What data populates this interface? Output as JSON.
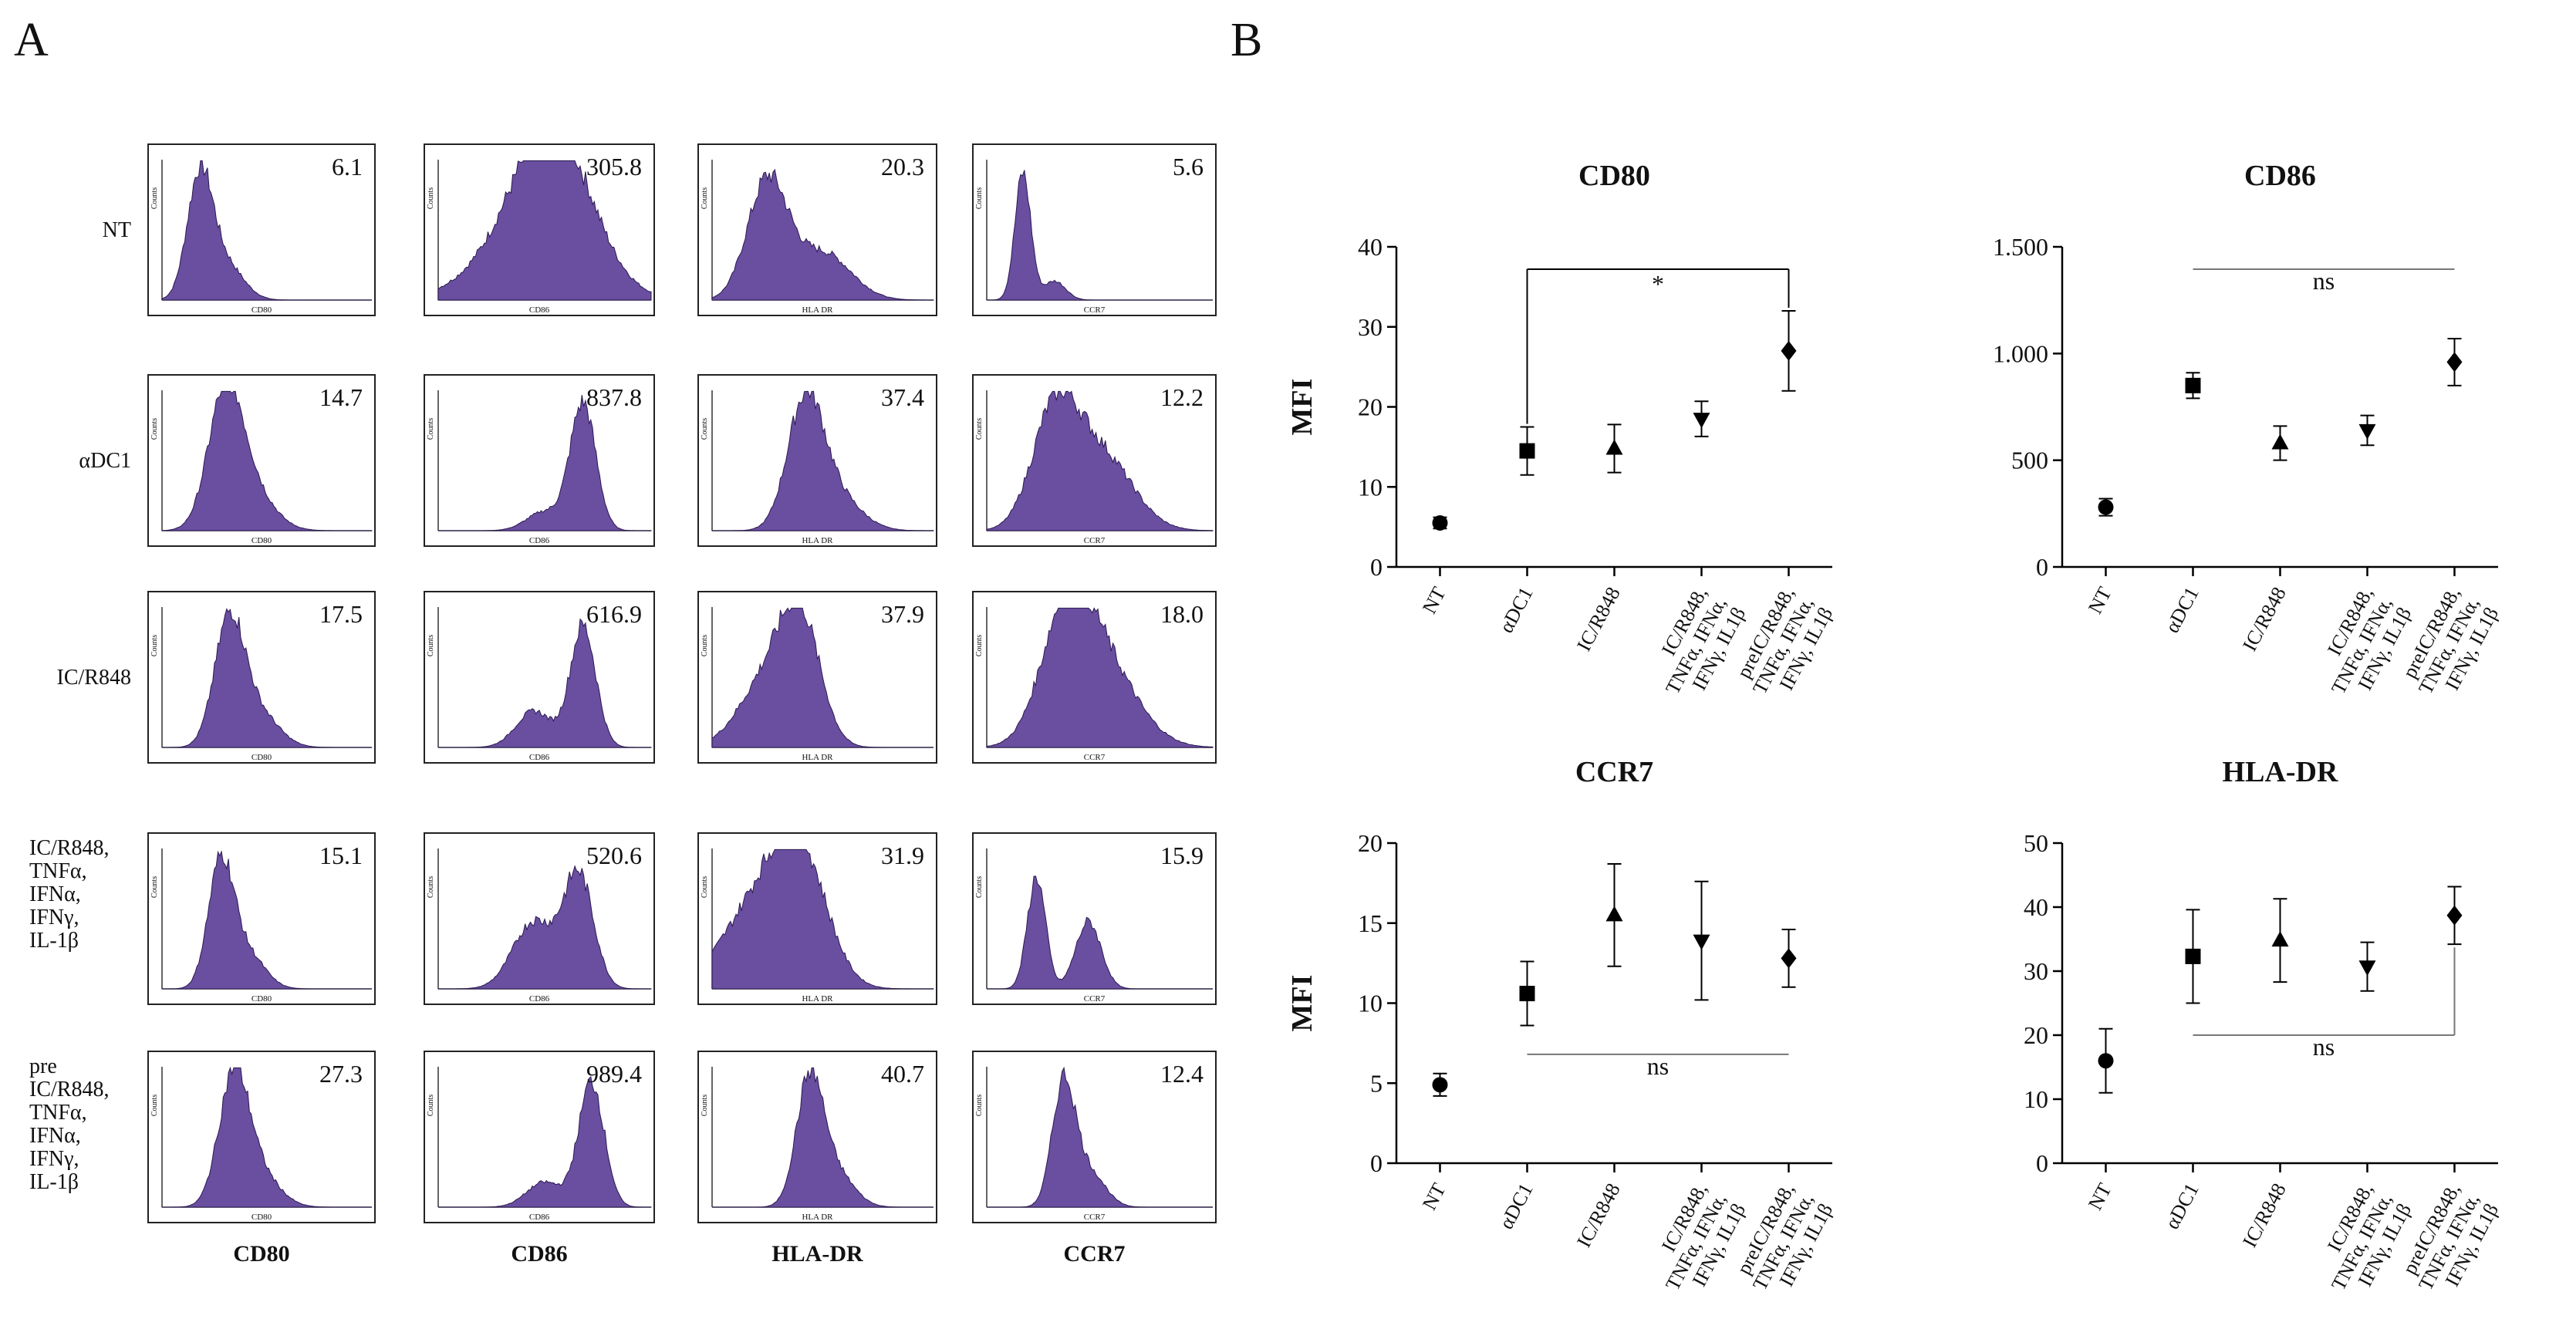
{
  "panel_labels": [
    "A",
    "B"
  ],
  "histograms": {
    "rows": [
      "NT",
      "αDC1",
      "IC/R848",
      "IC/R848,\nTNFα,\nIFNα,\nIFNγ,\nIL-1β",
      "pre\nIC/R848,\nTNFα,\nIFNα,\nIFNγ,\nIL-1β"
    ],
    "columns": [
      "CD80",
      "CD86",
      "HLA-DR",
      "CCR7"
    ],
    "axis_labels": [
      "CD80",
      "CD86",
      "HLA DR",
      "CCR7"
    ],
    "count_label": "Counts",
    "values": [
      [
        "6.1",
        "305.8",
        "20.3",
        "5.6"
      ],
      [
        "14.7",
        "837.8",
        "37.4",
        "12.2"
      ],
      [
        "17.5",
        "616.9",
        "37.9",
        "18.0"
      ],
      [
        "15.1",
        "520.6",
        "31.9",
        "15.9"
      ],
      [
        "27.3",
        "989.4",
        "40.7",
        "12.4"
      ]
    ]
  },
  "chart_data": [
    {
      "type": "scatter",
      "title": "CD80",
      "ylabel": "MFI",
      "categories": [
        "NT",
        "αDC1",
        "IC/R848",
        "IC/R848,\nTNFα, IFNα,\nIFNγ, IL1β",
        "preIC/R848,\nTNFα, IFNα,\nIFNγ, IL1β"
      ],
      "values": [
        5.5,
        14.5,
        14.8,
        18.5,
        27
      ],
      "errors": [
        0.7,
        3,
        3,
        2.2,
        5
      ],
      "markers": [
        "circle",
        "square",
        "triangle",
        "triangle-down",
        "diamond"
      ],
      "color": "#000000",
      "ylim": [
        0,
        40
      ],
      "yticks": [
        0,
        10,
        20,
        30,
        40
      ],
      "significance": {
        "label": "*",
        "between": [
          1,
          4
        ]
      }
    },
    {
      "type": "scatter",
      "title": "CD86",
      "categories": [
        "NT",
        "αDC1",
        "IC/R848",
        "IC/R848,\nTNFα, IFNα,\nIFNγ, IL1β",
        "preIC/R848,\nTNFα, IFNα,\nIFNγ, IL1β"
      ],
      "values": [
        280,
        850,
        580,
        640,
        960
      ],
      "errors": [
        40,
        60,
        80,
        70,
        110
      ],
      "markers": [
        "circle",
        "square",
        "triangle",
        "triangle-down",
        "diamond"
      ],
      "color": "#000000",
      "ylim": [
        0,
        1500
      ],
      "yticks": [
        0,
        500,
        {
          "value": 1000,
          "label": "1.000"
        },
        {
          "value": 1500,
          "label": "1.500"
        }
      ],
      "significance": {
        "label": "ns",
        "between": [
          1,
          4
        ]
      }
    },
    {
      "type": "scatter",
      "title": "CCR7",
      "ylabel": "MFI",
      "categories": [
        "NT",
        "αDC1",
        "IC/R848",
        "IC/R848,\nTNFα, IFNα,\nIFNγ, IL1β",
        "preIC/R848,\nTNFα, IFNα,\nIFNγ, IL1β"
      ],
      "values": [
        4.9,
        10.6,
        15.5,
        13.9,
        12.8
      ],
      "errors": [
        0.7,
        2,
        3.2,
        3.7,
        1.8
      ],
      "markers": [
        "circle",
        "square",
        "triangle",
        "triangle-down",
        "diamond"
      ],
      "color": "#000000",
      "ylim": [
        0,
        20
      ],
      "yticks": [
        0,
        5,
        10,
        15,
        20
      ],
      "significance": {
        "label": "ns",
        "between": [
          1,
          4
        ]
      }
    },
    {
      "type": "scatter",
      "title": "HLA-DR",
      "categories": [
        "NT",
        "αDC1",
        "IC/R848",
        "IC/R848,\nTNFα, IFNα,\nIFNγ, IL1β",
        "preIC/R848,\nTNFα, IFNα,\nIFNγ, IL1β"
      ],
      "values": [
        16,
        32.3,
        34.8,
        30.7,
        38.7
      ],
      "errors": [
        5,
        7.3,
        6.5,
        3.8,
        4.5
      ],
      "markers": [
        "circle",
        "square",
        "triangle",
        "triangle-down",
        "diamond"
      ],
      "color": "#000000",
      "ylim": [
        0,
        50
      ],
      "yticks": [
        0,
        10,
        20,
        30,
        40,
        50
      ],
      "significance": {
        "label": "ns",
        "between": [
          1,
          4
        ]
      }
    }
  ]
}
